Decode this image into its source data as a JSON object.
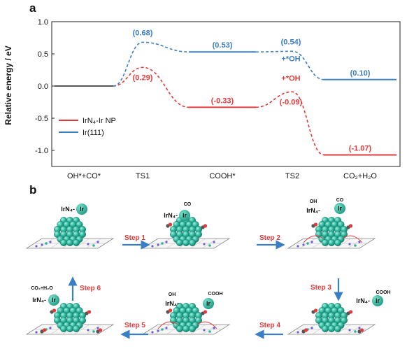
{
  "panels": {
    "a": "a",
    "b": "b"
  },
  "chart_data": {
    "type": "line",
    "ylabel": "Relative energy / eV",
    "ylim": [
      -1.25,
      1.0
    ],
    "yticks": [
      1.0,
      0.5,
      0.0,
      -0.5,
      -1.0
    ],
    "ytick_labels": [
      "1.0",
      "0.5",
      "0.0",
      "-0.5",
      "-1.0"
    ],
    "categories": [
      "OH*+CO*",
      "TS1",
      "COOH*",
      "TS2",
      "CO₂+H₂O"
    ],
    "legend": {
      "placement": "left",
      "entries": [
        "IrN₄-Ir NP",
        "Ir(111)"
      ]
    },
    "series": [
      {
        "name": "IrN₄-Ir NP",
        "color": "#e23a3a",
        "values": [
          0.0,
          0.29,
          -0.33,
          -0.09,
          -1.07
        ],
        "labels": [
          "",
          "(0.29)",
          "(-0.33)",
          "(-0.09)",
          "(-1.07)"
        ]
      },
      {
        "name": "Ir(111)",
        "color": "#3a7fc4",
        "values": [
          0.0,
          0.68,
          0.53,
          0.54,
          0.1
        ],
        "labels": [
          "",
          "(0.68)",
          "(0.53)",
          "(0.54)",
          "(0.10)"
        ]
      }
    ],
    "annotations": [
      {
        "text": "+*OH",
        "series": "Ir(111)",
        "color": "#3a7fc4"
      },
      {
        "text": "+*OH",
        "series": "IrN₄-Ir NP",
        "color": "#e23a3a"
      }
    ]
  },
  "scheme": {
    "site_label": "IrN₄-",
    "ir_label": "Ir",
    "steps": [
      "Step 1",
      "Step 2",
      "Step 3",
      "Step 4",
      "Step 5",
      "Step 6"
    ],
    "adsorbates": {
      "co": "CO",
      "oh": "OH",
      "cooh": "COOH",
      "product": "CO₂+H₂O"
    }
  },
  "colors": {
    "red": "#e23a3a",
    "blue": "#3a7fc4",
    "teal": "#2bb39b",
    "ground": "#333333"
  }
}
